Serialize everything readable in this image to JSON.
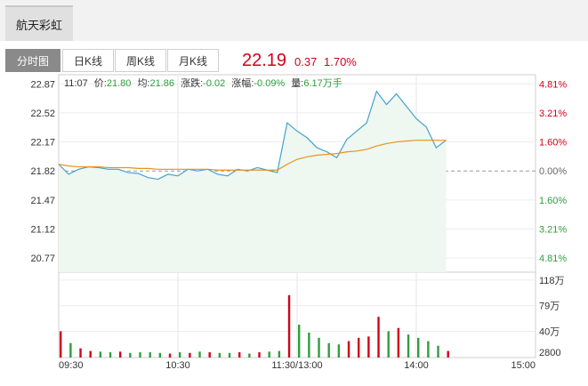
{
  "window_title": "航天彩虹",
  "tabs": [
    "分时图",
    "日K线",
    "周K线",
    "月K线"
  ],
  "active_tab": "分时图",
  "quote": {
    "price": "22.19",
    "change": "0.37",
    "change_pct": "1.70%"
  },
  "info_bar": {
    "time": "11:07",
    "price_label": "价:",
    "price": "21.80",
    "avg_label": "均:",
    "avg": "21.86",
    "chg_label": "涨跌:",
    "chg": "-0.02",
    "pct_label": "涨幅:",
    "pct": "-0.09%",
    "vol_label": "量:",
    "vol": "6.17万手"
  },
  "colors": {
    "up": "#d0021b",
    "down": "#2e9e3e",
    "price_line": "#44a3cc",
    "avg_line": "#e8921c",
    "fill": "#eef7f0"
  },
  "chart_data": {
    "type": "line",
    "prev_close": 21.82,
    "ylim": [
      20.6,
      22.98
    ],
    "y_ticks": [
      "22.87",
      "22.52",
      "22.17",
      "21.82",
      "21.47",
      "21.12",
      "20.77"
    ],
    "pct_ticks": [
      "4.81%",
      "3.21%",
      "1.60%",
      "0.00%",
      "1.60%",
      "3.21%",
      "4.81%"
    ],
    "x_ticks": [
      "09:30",
      "10:30",
      "11:30/13:00",
      "14:00",
      "15:00"
    ],
    "vol_ticks": [
      "118万",
      "79万",
      "40万",
      "2800"
    ],
    "x": [
      0,
      5,
      10,
      15,
      20,
      25,
      30,
      35,
      40,
      45,
      50,
      55,
      60,
      65,
      70,
      75,
      80,
      85,
      90,
      95,
      100,
      105,
      110,
      115,
      120,
      125,
      130,
      135,
      140,
      145,
      150,
      155,
      160,
      165,
      170,
      175,
      180,
      185,
      190,
      195
    ],
    "series": [
      {
        "values": [
          21.9,
          21.78,
          21.84,
          21.87,
          21.86,
          21.84,
          21.84,
          21.8,
          21.79,
          21.74,
          21.72,
          21.78,
          21.76,
          21.84,
          21.82,
          21.84,
          21.78,
          21.76,
          21.84,
          21.82,
          21.86,
          21.83,
          21.8,
          22.4,
          22.3,
          22.22,
          22.1,
          22.05,
          21.98,
          22.2,
          22.3,
          22.4,
          22.78,
          22.62,
          22.75,
          22.6,
          22.45,
          22.35,
          22.1,
          22.19
        ]
      },
      {
        "values": [
          21.9,
          21.88,
          21.87,
          21.87,
          21.87,
          21.86,
          21.86,
          21.86,
          21.85,
          21.85,
          21.84,
          21.84,
          21.84,
          21.84,
          21.84,
          21.84,
          21.83,
          21.83,
          21.83,
          21.83,
          21.83,
          21.83,
          21.83,
          21.9,
          21.96,
          21.99,
          22.01,
          22.02,
          22.03,
          22.05,
          22.06,
          22.08,
          22.12,
          22.15,
          22.17,
          22.18,
          22.19,
          22.19,
          22.19,
          22.19
        ]
      }
    ],
    "volume": [
      40,
      22,
      14,
      10,
      9,
      8,
      9,
      7,
      8,
      8,
      7,
      6,
      8,
      7,
      9,
      8,
      7,
      7,
      8,
      6,
      8,
      9,
      10,
      95,
      50,
      38,
      30,
      22,
      20,
      25,
      30,
      32,
      62,
      40,
      45,
      35,
      30,
      25,
      18,
      10
    ],
    "vol_max": 130
  }
}
